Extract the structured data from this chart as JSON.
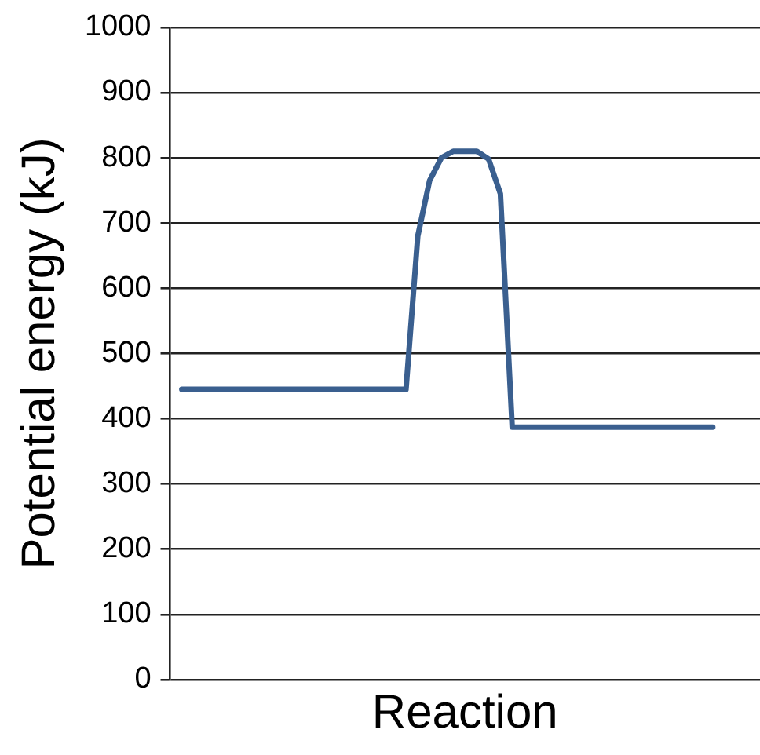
{
  "chart_data": {
    "type": "line",
    "xlabel": "Reaction",
    "ylabel": "Potential energy (kJ)",
    "categories": [
      null,
      null,
      null,
      null,
      null,
      null,
      null,
      null,
      null,
      null,
      null,
      null,
      null,
      null,
      null,
      null,
      null,
      null,
      null,
      null,
      null,
      null,
      null,
      null,
      null,
      null,
      null,
      null,
      null,
      null,
      null,
      null,
      null,
      null,
      null,
      null,
      null,
      null,
      null,
      null,
      null,
      null,
      null,
      null,
      null,
      null,
      null,
      null,
      null,
      null,
      null
    ],
    "ylim": [
      0,
      1000
    ],
    "yticks": [
      0,
      100,
      200,
      300,
      400,
      500,
      600,
      700,
      800,
      900,
      1000
    ],
    "grid": "y",
    "tick_labels": "y",
    "marker": "none",
    "line_style": "solid",
    "series": [
      {
        "color": "#3a5f8f",
        "values": [
          null,
          445,
          445,
          445,
          445,
          445,
          445,
          445,
          445,
          445,
          445,
          445,
          445,
          445,
          445,
          445,
          445,
          445,
          445,
          445,
          445,
          680,
          765,
          800,
          810,
          810,
          810,
          798,
          745,
          387,
          387,
          387,
          387,
          387,
          387,
          387,
          387,
          387,
          387,
          387,
          387,
          387,
          387,
          387,
          387,
          387,
          387,
          null,
          null,
          null,
          null
        ]
      }
    ]
  }
}
